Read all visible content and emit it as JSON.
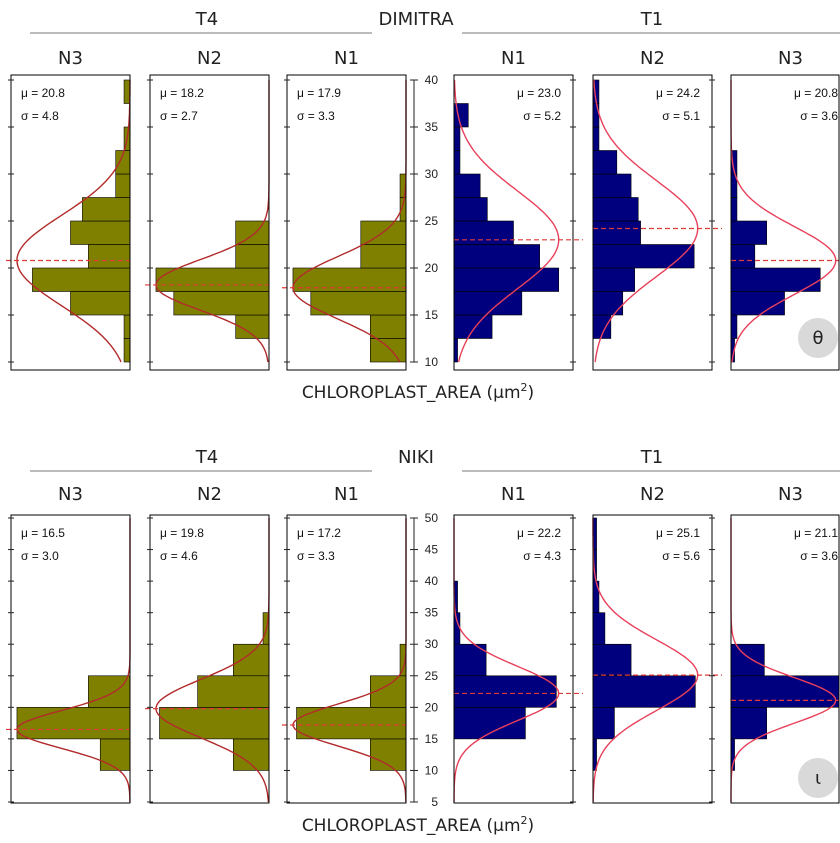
{
  "colors": {
    "t4_bars": "#808000",
    "t1_bars": "#00007f",
    "fit_curve_t4": "#b22b2b",
    "fit_curve_t1": "#e8405a",
    "mean_line": "#e03a3a",
    "badge_bg": "#d9d9d9"
  },
  "chart_data": [
    {
      "type": "bar",
      "orientation": "horizontal-histogram",
      "title": "DIMITRA",
      "xlabel": "CHLOROPLAST_AREA (μm²)",
      "ylim": [
        10,
        40
      ],
      "ticks": [
        10,
        15,
        20,
        25,
        30,
        35,
        40
      ],
      "group_left": "T4",
      "group_right": "T1",
      "badge": "θ",
      "bin_edges": [
        10,
        12.5,
        15,
        17.5,
        20,
        22.5,
        25,
        27.5,
        30,
        32.5,
        35,
        37.5,
        40
      ],
      "panels": [
        {
          "side": "left",
          "name": "N3",
          "mu_label": "μ = 20.8",
          "sigma_label": "σ = 4.8",
          "mu": 20.8,
          "sigma": 4.8,
          "values": [
            0.05,
            0.05,
            0.5,
            0.82,
            0.35,
            0.5,
            0.4,
            0.12,
            0.12,
            0.05,
            0,
            0.05
          ]
        },
        {
          "side": "left",
          "name": "N2",
          "mu_label": "μ = 18.2",
          "sigma_label": "σ = 2.7",
          "mu": 18.2,
          "sigma": 2.7,
          "values": [
            0,
            0.28,
            0.8,
            0.95,
            0.28,
            0.28,
            0,
            0,
            0,
            0,
            0,
            0
          ]
        },
        {
          "side": "left",
          "name": "N1",
          "mu_label": "μ = 17.9",
          "sigma_label": "σ = 3.3",
          "mu": 17.9,
          "sigma": 3.3,
          "values": [
            0.3,
            0.3,
            0.8,
            0.95,
            0.38,
            0.38,
            0.05,
            0.05,
            0,
            0,
            0,
            0
          ]
        },
        {
          "side": "right",
          "name": "N1",
          "mu_label": "μ = 23.0",
          "sigma_label": "σ = 5.2",
          "mu": 23.0,
          "sigma": 5.2,
          "values": [
            0.03,
            0.32,
            0.57,
            0.88,
            0.72,
            0.5,
            0.28,
            0.22,
            0.05,
            0.05,
            0.12,
            0
          ]
        },
        {
          "side": "right",
          "name": "N2",
          "mu_label": "μ = 24.2",
          "sigma_label": "σ = 5.1",
          "mu": 24.2,
          "sigma": 5.1,
          "values": [
            0,
            0.15,
            0.25,
            0.35,
            0.85,
            0.4,
            0.38,
            0.32,
            0.2,
            0.05,
            0.05,
            0.05
          ]
        },
        {
          "side": "right",
          "name": "N3",
          "mu_label": "μ = 20.8",
          "sigma_label": "σ = 3.6",
          "mu": 20.8,
          "sigma": 3.6,
          "values": [
            0.03,
            0.05,
            0.45,
            0.75,
            0.2,
            0.3,
            0.05,
            0.05,
            0.05,
            0,
            0,
            0
          ]
        }
      ]
    },
    {
      "type": "bar",
      "orientation": "horizontal-histogram",
      "title": "NIKI",
      "xlabel": "CHLOROPLAST_AREA (μm²)",
      "ylim": [
        5,
        50
      ],
      "ticks": [
        5,
        10,
        15,
        20,
        25,
        30,
        35,
        40,
        45,
        50
      ],
      "group_left": "T4",
      "group_right": "T1",
      "badge": "ι",
      "bin_edges": [
        5,
        10,
        15,
        20,
        25,
        30,
        35,
        40,
        45,
        50
      ],
      "panels": [
        {
          "side": "left",
          "name": "N3",
          "mu_label": "μ = 16.5",
          "sigma_label": "σ = 3.0",
          "mu": 16.5,
          "sigma": 3.0,
          "values": [
            0,
            0.25,
            0.95,
            0.35,
            0,
            0,
            0,
            0,
            0
          ]
        },
        {
          "side": "left",
          "name": "N2",
          "mu_label": "μ = 19.8",
          "sigma_label": "σ = 4.6",
          "mu": 19.8,
          "sigma": 4.6,
          "values": [
            0,
            0.3,
            0.92,
            0.6,
            0.3,
            0.05,
            0,
            0,
            0
          ]
        },
        {
          "side": "left",
          "name": "N1",
          "mu_label": "μ = 17.2",
          "sigma_label": "σ = 3.3",
          "mu": 17.2,
          "sigma": 3.3,
          "values": [
            0,
            0.3,
            0.92,
            0.3,
            0.05,
            0,
            0,
            0,
            0
          ]
        },
        {
          "side": "right",
          "name": "N1",
          "mu_label": "μ = 22.2",
          "sigma_label": "σ = 4.3",
          "mu": 22.2,
          "sigma": 4.3,
          "values": [
            0,
            0,
            0.6,
            0.86,
            0.27,
            0.05,
            0.03,
            0,
            0
          ]
        },
        {
          "side": "right",
          "name": "N2",
          "mu_label": "μ = 25.1",
          "sigma_label": "σ = 5.6",
          "mu": 25.1,
          "sigma": 5.6,
          "values": [
            0,
            0.03,
            0.18,
            0.86,
            0.32,
            0.1,
            0.05,
            0.03,
            0.03
          ]
        },
        {
          "side": "right",
          "name": "N3",
          "mu_label": "μ = 21.1",
          "sigma_label": "σ = 3.6",
          "mu": 21.1,
          "sigma": 3.6,
          "values": [
            0,
            0.03,
            0.3,
            0.92,
            0.28,
            0,
            0,
            0,
            0
          ]
        }
      ]
    }
  ]
}
